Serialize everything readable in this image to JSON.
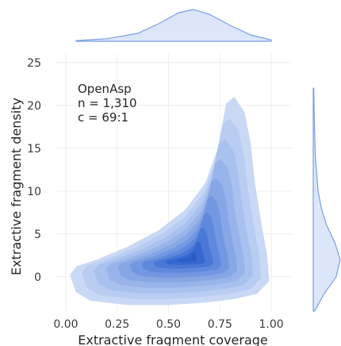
{
  "chart_data": {
    "type": "kde_joint",
    "xlabel": "Extractive fragment coverage",
    "ylabel": "Extractive fragment density",
    "xlim": [
      -0.05,
      1.1
    ],
    "ylim": [
      -4,
      26
    ],
    "x_ticks": [
      "0.00",
      "0.25",
      "0.50",
      "0.75",
      "1.00"
    ],
    "x_tick_values": [
      0.0,
      0.25,
      0.5,
      0.75,
      1.0
    ],
    "y_ticks": [
      "0",
      "5",
      "10",
      "15",
      "20",
      "25"
    ],
    "y_tick_values": [
      0,
      5,
      10,
      15,
      20,
      25
    ],
    "grid": true,
    "annotation": [
      "OpenAsp",
      "n = 1,310",
      "c = 69:1"
    ],
    "density_peak": {
      "x": 0.6,
      "y": 2
    },
    "contour_colors": [
      "#c9d8f5",
      "#b9cdf2",
      "#a9c1ee",
      "#98b4ea",
      "#86a6e6",
      "#7398e1",
      "#5f89dc",
      "#4a78d6",
      "#3669cf",
      "#2a5cc4"
    ],
    "marginal_color": "#dbe6fa",
    "marginal_line": "#7a9ee6",
    "marginal_x": {
      "x": [
        0.05,
        0.2,
        0.35,
        0.45,
        0.55,
        0.62,
        0.7,
        0.8,
        0.9,
        1.0
      ],
      "density": [
        0.02,
        0.08,
        0.25,
        0.55,
        0.9,
        1.0,
        0.85,
        0.5,
        0.2,
        0.04
      ]
    },
    "marginal_y": {
      "y": [
        -4,
        -2,
        0,
        2,
        4,
        6,
        8,
        10,
        14,
        18,
        22
      ],
      "density": [
        0.05,
        0.4,
        0.85,
        1.0,
        0.8,
        0.5,
        0.3,
        0.18,
        0.08,
        0.04,
        0.02
      ]
    }
  }
}
